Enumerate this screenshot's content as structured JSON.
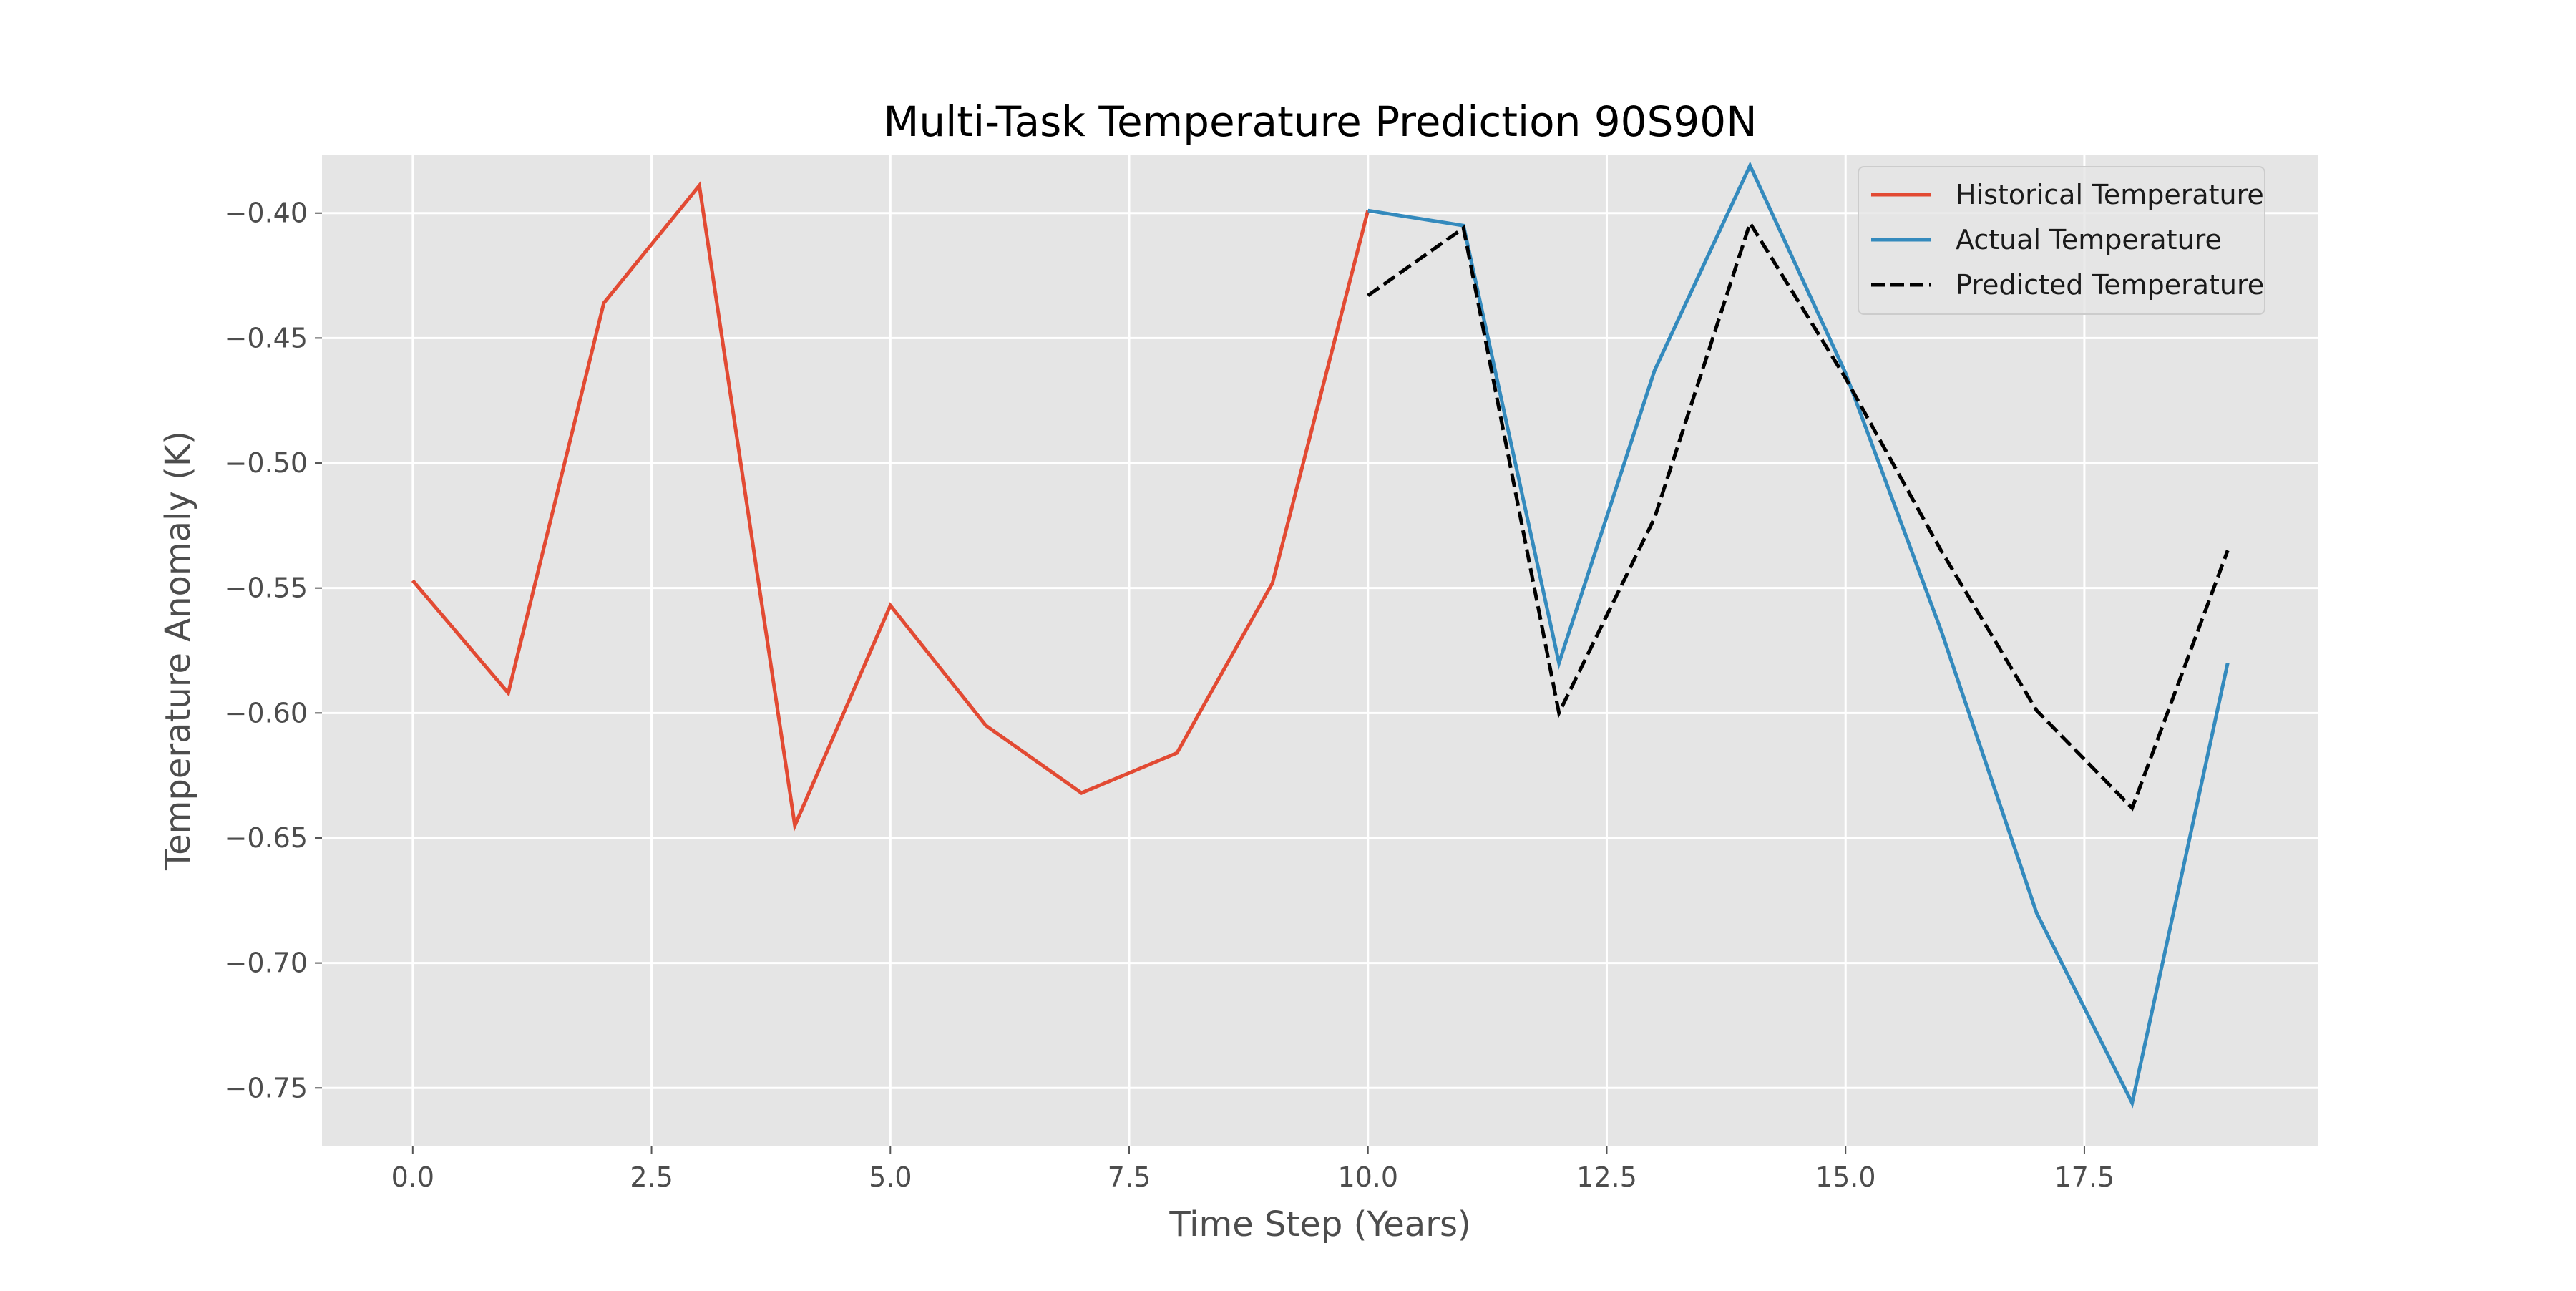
{
  "chart_data": {
    "type": "line",
    "title": "Multi-Task Temperature Prediction 90S90N",
    "xlabel": "Time Step (Years)",
    "ylabel": "Temperature Anomaly (K)",
    "xlim": [
      -0.95,
      19.95
    ],
    "ylim": [
      -0.7734,
      -0.3766
    ],
    "x_ticks": [
      0.0,
      2.5,
      5.0,
      7.5,
      10.0,
      12.5,
      15.0,
      17.5
    ],
    "x_tick_labels": [
      "0.0",
      "2.5",
      "5.0",
      "7.5",
      "10.0",
      "12.5",
      "15.0",
      "17.5"
    ],
    "y_ticks": [
      -0.4,
      -0.45,
      -0.5,
      -0.55,
      -0.6,
      -0.65,
      -0.7,
      -0.75
    ],
    "y_tick_labels": [
      "−0.40",
      "−0.45",
      "−0.50",
      "−0.55",
      "−0.60",
      "−0.65",
      "−0.70",
      "−0.75"
    ],
    "grid": true,
    "legend_position": "top-right",
    "background": "#e5e5e5",
    "series": [
      {
        "name": "Historical Temperature",
        "color": "#e24a33",
        "dash": "solid",
        "x": [
          0,
          1,
          2,
          3,
          4,
          5,
          6,
          7,
          8,
          9,
          10
        ],
        "y": [
          -0.547,
          -0.592,
          -0.436,
          -0.389,
          -0.645,
          -0.557,
          -0.605,
          -0.632,
          -0.616,
          -0.548,
          -0.399
        ]
      },
      {
        "name": "Actual Temperature",
        "color": "#348abd",
        "dash": "solid",
        "x": [
          10,
          11,
          12,
          13,
          14,
          15,
          16,
          17,
          18,
          19
        ],
        "y": [
          -0.399,
          -0.405,
          -0.58,
          -0.463,
          -0.381,
          -0.464,
          -0.567,
          -0.68,
          -0.756,
          -0.58
        ]
      },
      {
        "name": "Predicted Temperature",
        "color": "#000000",
        "dash": "dashed",
        "x": [
          10,
          11,
          12,
          13,
          14,
          15,
          16,
          17,
          18,
          19
        ],
        "y": [
          -0.433,
          -0.406,
          -0.6,
          -0.522,
          -0.404,
          -0.466,
          -0.535,
          -0.599,
          -0.638,
          -0.535
        ]
      }
    ]
  }
}
